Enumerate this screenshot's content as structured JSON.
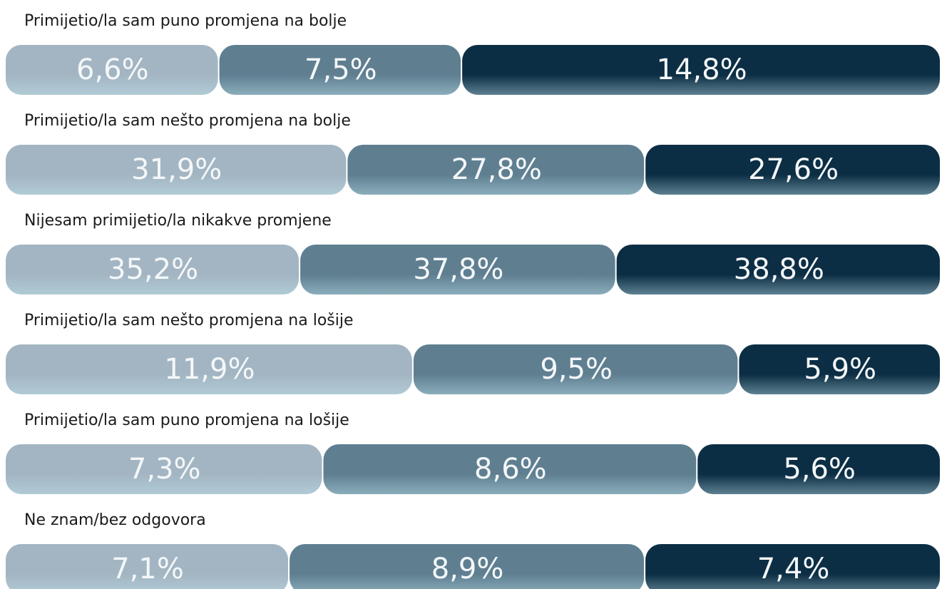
{
  "chart_data": {
    "type": "bar",
    "orientation": "horizontal",
    "stacked": true,
    "normalized": true,
    "categories": [
      "Primijetio/la sam puno promjena na bolje",
      "Primijetio/la sam nešto promjena na bolje",
      "Nijesam primijetio/la nikakve promjene",
      "Primijetio/la sam nešto promjena na lošije",
      "Primijetio/la sam puno promjena na lošije",
      "Ne znam/bez odgovora"
    ],
    "series": [
      {
        "color": "#a3b5c2",
        "values": [
          6.6,
          31.9,
          35.2,
          11.9,
          7.3,
          7.1
        ],
        "value_labels": [
          "6,6%",
          "31,9%",
          "35,2%",
          "11,9%",
          "7,3%",
          "7,1%"
        ]
      },
      {
        "color": "#5f7f91",
        "values": [
          7.5,
          27.8,
          37.8,
          9.5,
          8.6,
          8.9
        ],
        "value_labels": [
          "7,5%",
          "27,8%",
          "37,8%",
          "9,5%",
          "8,6%",
          "8,9%"
        ]
      },
      {
        "color": "#0c2e44",
        "values": [
          14.8,
          27.6,
          38.8,
          5.9,
          5.6,
          7.4
        ],
        "value_labels": [
          "14,8%",
          "27,6%",
          "38,8%",
          "5,9%",
          "5,6%",
          "7,4%"
        ]
      }
    ]
  }
}
